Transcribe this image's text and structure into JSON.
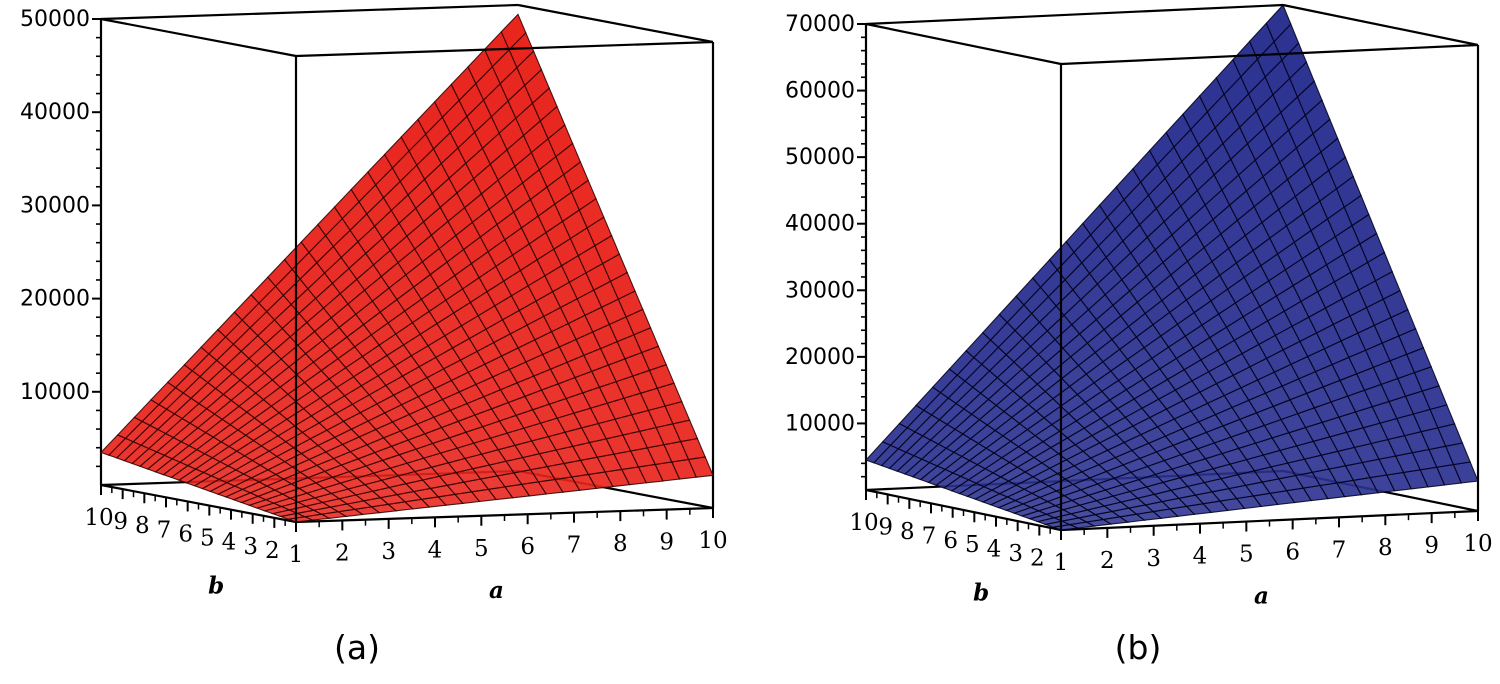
{
  "chart_data": [
    {
      "type": "surface",
      "panel_label": "(a)",
      "surface_color": "#e8241c",
      "grid_color": "#2a0000",
      "xlabel": "a",
      "ylabel": "b",
      "zlabel": "",
      "xlim": [
        1,
        10
      ],
      "ylim": [
        1,
        10
      ],
      "zlim": [
        0,
        50000
      ],
      "x_ticks": [
        "1",
        "2",
        "3",
        "4",
        "5",
        "6",
        "7",
        "8",
        "9",
        "10"
      ],
      "y_ticks": [
        "2",
        "3",
        "4",
        "5",
        "6",
        "7",
        "8",
        "9",
        "10"
      ],
      "y_ticks_drawn": [
        "2",
        "3",
        "4",
        "5",
        "6",
        "7",
        "8",
        "9",
        "10"
      ],
      "z_ticks": [
        "10000",
        "20000",
        "30000",
        "40000",
        "50000"
      ],
      "corner_values": {
        "a1_b1": 0,
        "a10_b1": 3500,
        "a1_b10": 3500,
        "a10_b10": 49000
      },
      "mesh_divisions": 25,
      "grid": false,
      "legend": "none"
    },
    {
      "type": "surface",
      "panel_label": "(b)",
      "surface_color": "#2b3190",
      "grid_color": "#000018",
      "xlabel": "a",
      "ylabel": "b",
      "zlabel": "",
      "xlim": [
        1,
        10
      ],
      "ylim": [
        1,
        10
      ],
      "zlim": [
        0,
        70000
      ],
      "x_ticks": [
        "1",
        "2",
        "3",
        "4",
        "5",
        "6",
        "7",
        "8",
        "9",
        "10"
      ],
      "y_ticks": [
        "2",
        "3",
        "4",
        "5",
        "6",
        "7",
        "8",
        "9",
        "10"
      ],
      "y_ticks_drawn": [
        "2",
        "3",
        "4",
        "5",
        "6",
        "7",
        "8",
        "9",
        "10"
      ],
      "z_ticks": [
        "10000",
        "20000",
        "30000",
        "40000",
        "50000",
        "60000",
        "70000"
      ],
      "corner_values": {
        "a1_b1": 0,
        "a10_b1": 4500,
        "a1_b10": 4500,
        "a10_b10": 70000
      },
      "mesh_divisions": 25,
      "grid": false,
      "legend": "none"
    }
  ]
}
